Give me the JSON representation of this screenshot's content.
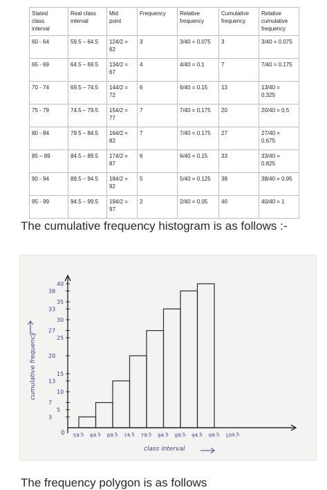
{
  "table": {
    "headers": [
      [
        "Stated",
        "class",
        "interval"
      ],
      [
        "Real class",
        "interval"
      ],
      [
        "Mid",
        "point"
      ],
      [
        "Frequency"
      ],
      [
        "Relative",
        "frequency"
      ],
      [
        "Cumulative",
        "frequency"
      ],
      [
        "Relative",
        "cumulative",
        "frequency"
      ]
    ],
    "rows": [
      [
        [
          "60 - 64"
        ],
        [
          "59.5 – 64.5"
        ],
        [
          "124/2 =",
          "62"
        ],
        [
          "3"
        ],
        [
          "3/40 = 0.075"
        ],
        [
          "3"
        ],
        [
          "3/40 = 0.075"
        ]
      ],
      [
        [
          "65 - 69"
        ],
        [
          "64.5 – 69.5"
        ],
        [
          "134/2 =",
          "67"
        ],
        [
          "4"
        ],
        [
          "4/40 = 0.1"
        ],
        [
          "7"
        ],
        [
          "7/40 = 0.175"
        ]
      ],
      [
        [
          "70 - 74"
        ],
        [
          "69.5 – 74.5"
        ],
        [
          "144/2 =",
          "72"
        ],
        [
          "6"
        ],
        [
          "6/40 = 0.15"
        ],
        [
          "13"
        ],
        [
          "13/40 =",
          "0.325"
        ]
      ],
      [
        [
          "75 - 79"
        ],
        [
          "74.5 – 79.5"
        ],
        [
          "154/2 =",
          "77"
        ],
        [
          "7"
        ],
        [
          "7/40 = 0.175"
        ],
        [
          "20"
        ],
        [
          "20/40 = 0.5"
        ]
      ],
      [
        [
          "80 - 84"
        ],
        [
          "79.5 – 84.5"
        ],
        [
          "164/2 =",
          "82"
        ],
        [
          "7"
        ],
        [
          "7/40 = 0.175"
        ],
        [
          "27"
        ],
        [
          "27/40 =",
          "0.675"
        ]
      ],
      [
        [
          "85 – 89"
        ],
        [
          "84.5 – 89.5"
        ],
        [
          "174/2 =",
          "87"
        ],
        [
          "6"
        ],
        [
          "6/40 = 0.15"
        ],
        [
          "33"
        ],
        [
          "33/40 =",
          "0.825"
        ]
      ],
      [
        [
          "90 - 94"
        ],
        [
          "89.5 – 94.5"
        ],
        [
          "184/2 =",
          "92"
        ],
        [
          "5"
        ],
        [
          "5/40 = 0.125"
        ],
        [
          "38"
        ],
        [
          "38/40 = 0.95"
        ]
      ],
      [
        [
          "95 - 99"
        ],
        [
          "94.5 – 99.5"
        ],
        [
          "194/2 =",
          "97"
        ],
        [
          "2"
        ],
        [
          "2/40 = 0.05"
        ],
        [
          "40"
        ],
        [
          "40/40 = 1"
        ]
      ]
    ]
  },
  "heading": "The cumulative frequency histogram is as follows :-",
  "chart_data": {
    "type": "bar",
    "categories": [
      "59.5-64.5",
      "64.5-69.5",
      "69.5-74.5",
      "74.5-79.5",
      "79.5-84.5",
      "84.5-89.5",
      "89.5-94.5",
      "94.5-99.5"
    ],
    "values": [
      3,
      7,
      13,
      20,
      27,
      33,
      38,
      40
    ],
    "x_tick_labels": [
      "59.5",
      "64.5",
      "69.5",
      "74.5",
      "79.5",
      "84.5",
      "89.5",
      "94.5",
      "99.5",
      "104.5"
    ],
    "y_tick_labels": [
      "3",
      "5",
      "7",
      "10",
      "13",
      "15",
      "20",
      "25",
      "27",
      "30",
      "33",
      "35",
      "38",
      "40"
    ],
    "origin_label": "0",
    "xlabel": "class interval",
    "ylabel": "cumulative frequency",
    "ylim": [
      0,
      40
    ]
  },
  "colors": {
    "ink": "#3a3f8a",
    "pencil": "#2b2b2b",
    "paper": "#f3f3f1"
  },
  "footer_partial": "The frequency polygon is as follows"
}
